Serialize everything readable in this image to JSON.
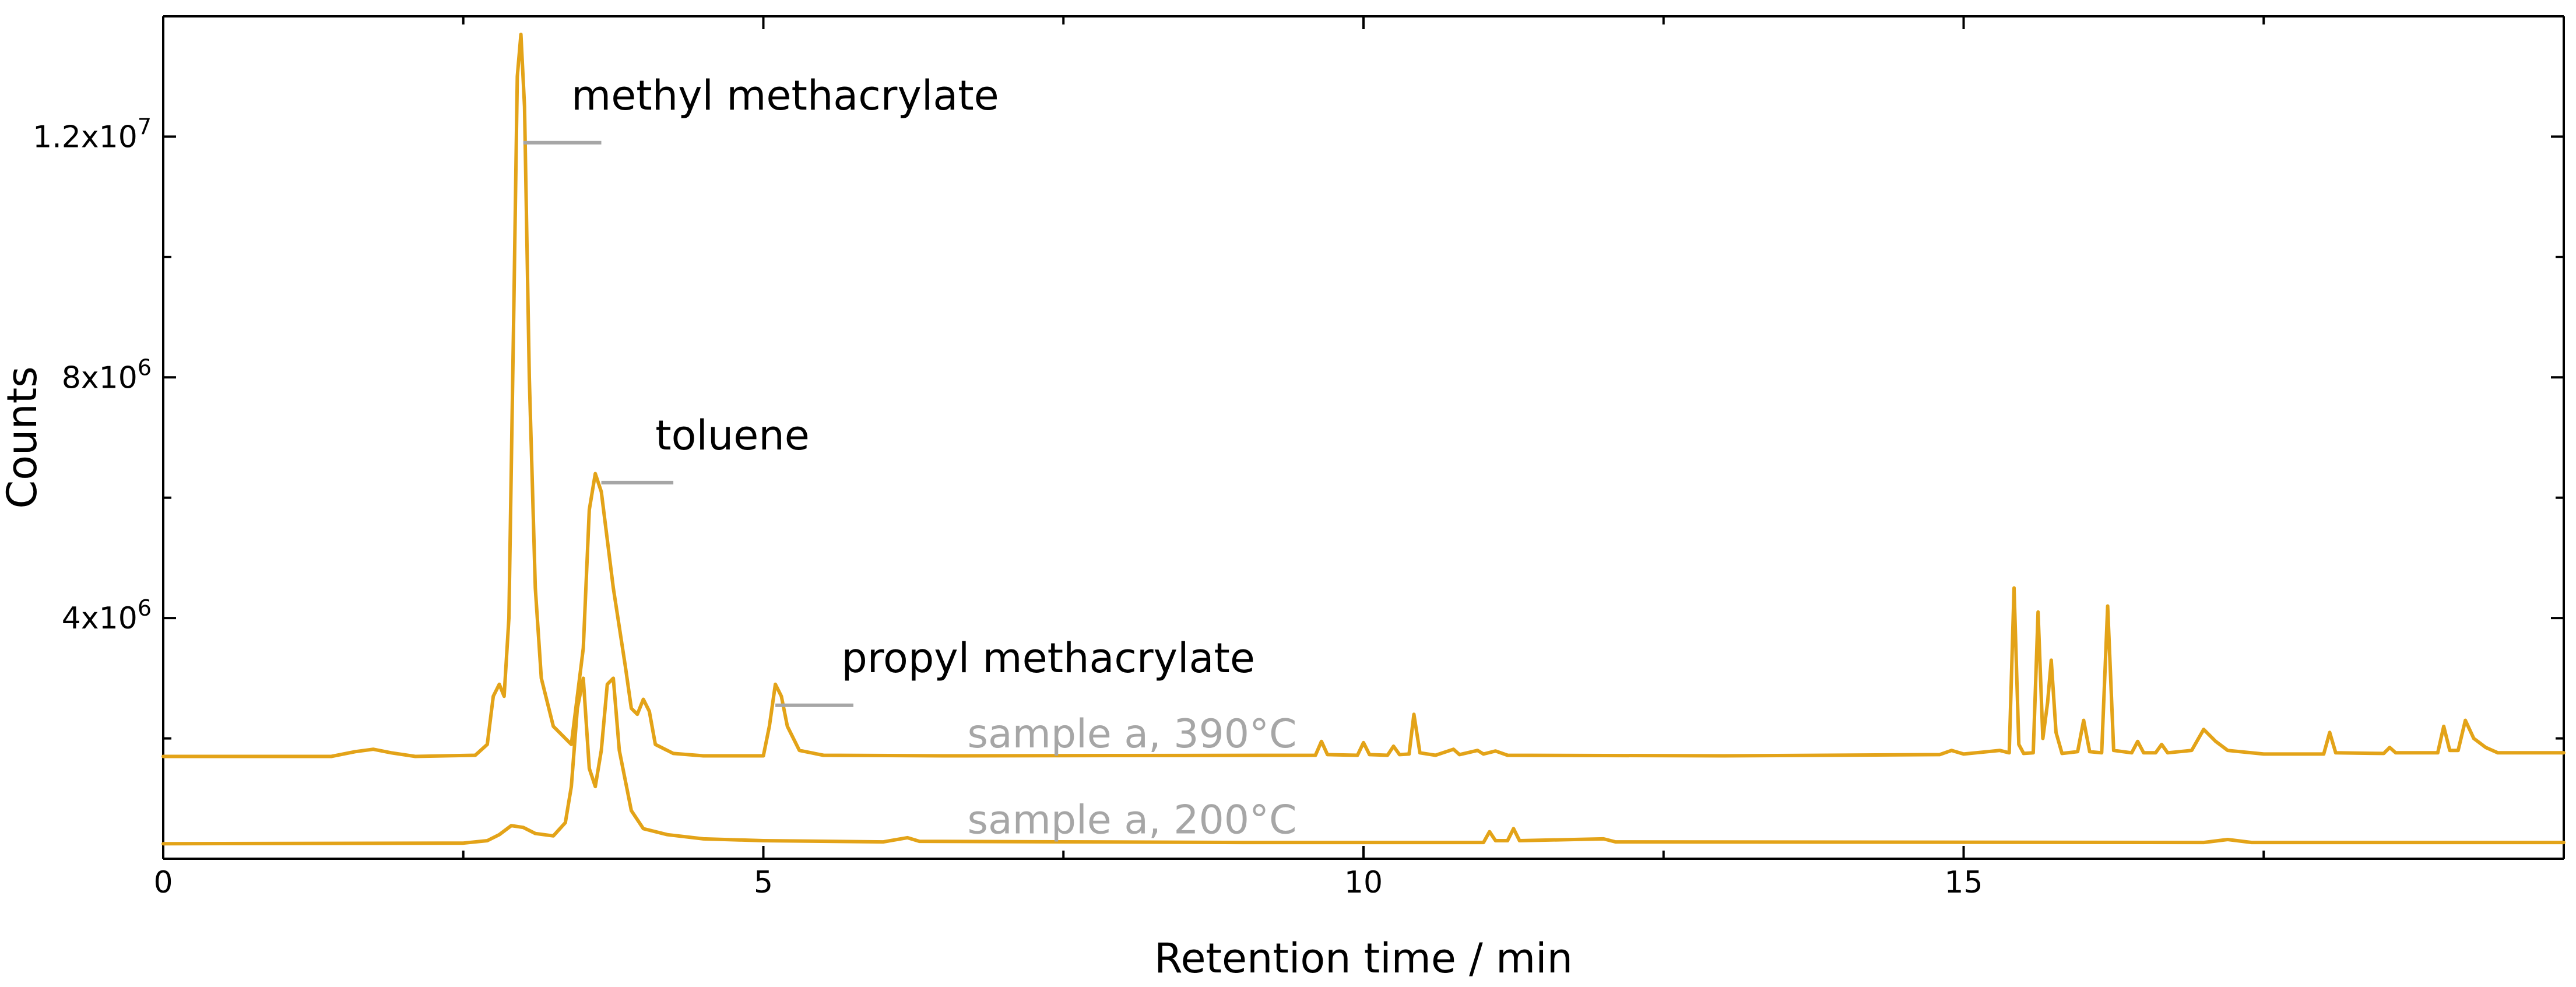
{
  "chart_data": {
    "type": "line",
    "title": "",
    "xlabel": "Retention time / min",
    "ylabel": "Counts",
    "xlim": [
      0,
      20
    ],
    "ylim": [
      0,
      14000000
    ],
    "x_ticks": [
      {
        "value": 0,
        "label": "0"
      },
      {
        "value": 5,
        "label": "5"
      },
      {
        "value": 10,
        "label": "10"
      },
      {
        "value": 15,
        "label": "15"
      }
    ],
    "x_minor_ticks": [
      2.5,
      7.5,
      12.5,
      17.5
    ],
    "y_ticks": [
      {
        "value": 4000000,
        "base": "4x10",
        "exp": "6"
      },
      {
        "value": 8000000,
        "base": "8x10",
        "exp": "6"
      },
      {
        "value": 12000000,
        "base": "1.2x10",
        "exp": "7"
      }
    ],
    "y_minor_ticks": [
      2000000,
      6000000,
      10000000
    ],
    "grid": false,
    "line_color": "#e3a318",
    "leader_color": "#a6a6a6",
    "trace_label_color": "#a6a6a6",
    "series": [
      {
        "label": "sample a, 390°C",
        "baseline": 1700000,
        "label_at": {
          "x": 6.7,
          "y": 1850000
        },
        "points": [
          [
            0.0,
            1700000
          ],
          [
            1.4,
            1700000
          ],
          [
            1.6,
            1780000
          ],
          [
            1.75,
            1820000
          ],
          [
            1.9,
            1760000
          ],
          [
            2.1,
            1700000
          ],
          [
            2.6,
            1720000
          ],
          [
            2.7,
            1900000
          ],
          [
            2.75,
            2700000
          ],
          [
            2.8,
            2900000
          ],
          [
            2.84,
            2700000
          ],
          [
            2.88,
            4000000
          ],
          [
            2.92,
            9000000
          ],
          [
            2.95,
            13000000
          ],
          [
            2.98,
            13700000
          ],
          [
            3.01,
            12500000
          ],
          [
            3.05,
            8000000
          ],
          [
            3.1,
            4500000
          ],
          [
            3.15,
            3000000
          ],
          [
            3.25,
            2200000
          ],
          [
            3.4,
            1900000
          ],
          [
            3.5,
            3500000
          ],
          [
            3.55,
            5800000
          ],
          [
            3.6,
            6400000
          ],
          [
            3.65,
            6100000
          ],
          [
            3.75,
            4500000
          ],
          [
            3.85,
            3200000
          ],
          [
            3.9,
            2500000
          ],
          [
            3.95,
            2400000
          ],
          [
            4.0,
            2650000
          ],
          [
            4.05,
            2450000
          ],
          [
            4.1,
            1900000
          ],
          [
            4.25,
            1750000
          ],
          [
            4.5,
            1710000
          ],
          [
            5.0,
            1710000
          ],
          [
            5.05,
            2200000
          ],
          [
            5.1,
            2900000
          ],
          [
            5.15,
            2700000
          ],
          [
            5.2,
            2200000
          ],
          [
            5.3,
            1800000
          ],
          [
            5.5,
            1720000
          ],
          [
            6.5,
            1710000
          ],
          [
            8.0,
            1715000
          ],
          [
            9.6,
            1720000
          ],
          [
            9.65,
            1950000
          ],
          [
            9.7,
            1730000
          ],
          [
            9.95,
            1720000
          ],
          [
            10.0,
            1930000
          ],
          [
            10.05,
            1730000
          ],
          [
            10.2,
            1720000
          ],
          [
            10.25,
            1870000
          ],
          [
            10.3,
            1730000
          ],
          [
            10.38,
            1740000
          ],
          [
            10.42,
            2400000
          ],
          [
            10.47,
            1760000
          ],
          [
            10.6,
            1720000
          ],
          [
            10.75,
            1820000
          ],
          [
            10.8,
            1730000
          ],
          [
            10.95,
            1800000
          ],
          [
            11.0,
            1740000
          ],
          [
            11.1,
            1790000
          ],
          [
            11.2,
            1720000
          ],
          [
            13.0,
            1710000
          ],
          [
            14.8,
            1730000
          ],
          [
            14.9,
            1800000
          ],
          [
            15.0,
            1740000
          ],
          [
            15.2,
            1780000
          ],
          [
            15.3,
            1800000
          ],
          [
            15.38,
            1760000
          ],
          [
            15.42,
            4500000
          ],
          [
            15.46,
            1900000
          ],
          [
            15.5,
            1750000
          ],
          [
            15.58,
            1760000
          ],
          [
            15.62,
            4100000
          ],
          [
            15.66,
            2000000
          ],
          [
            15.7,
            2600000
          ],
          [
            15.73,
            3300000
          ],
          [
            15.77,
            2100000
          ],
          [
            15.82,
            1750000
          ],
          [
            15.95,
            1780000
          ],
          [
            16.0,
            2300000
          ],
          [
            16.05,
            1780000
          ],
          [
            16.15,
            1760000
          ],
          [
            16.2,
            4200000
          ],
          [
            16.25,
            1800000
          ],
          [
            16.4,
            1760000
          ],
          [
            16.45,
            1950000
          ],
          [
            16.5,
            1760000
          ],
          [
            16.6,
            1760000
          ],
          [
            16.65,
            1900000
          ],
          [
            16.7,
            1760000
          ],
          [
            16.9,
            1800000
          ],
          [
            17.0,
            2150000
          ],
          [
            17.1,
            1950000
          ],
          [
            17.2,
            1800000
          ],
          [
            17.5,
            1740000
          ],
          [
            18.0,
            1740000
          ],
          [
            18.05,
            2100000
          ],
          [
            18.1,
            1760000
          ],
          [
            18.5,
            1750000
          ],
          [
            18.55,
            1850000
          ],
          [
            18.6,
            1760000
          ],
          [
            18.95,
            1760000
          ],
          [
            19.0,
            2200000
          ],
          [
            19.05,
            1800000
          ],
          [
            19.12,
            1800000
          ],
          [
            19.18,
            2300000
          ],
          [
            19.25,
            2000000
          ],
          [
            19.35,
            1850000
          ],
          [
            19.45,
            1760000
          ],
          [
            19.7,
            1760000
          ],
          [
            20.0,
            1760000
          ]
        ]
      },
      {
        "label": "sample a, 200°C",
        "baseline": 250000,
        "label_at": {
          "x": 6.7,
          "y": 420000
        },
        "points": [
          [
            0.0,
            250000
          ],
          [
            2.5,
            260000
          ],
          [
            2.7,
            300000
          ],
          [
            2.8,
            400000
          ],
          [
            2.9,
            550000
          ],
          [
            3.0,
            520000
          ],
          [
            3.1,
            420000
          ],
          [
            3.25,
            380000
          ],
          [
            3.35,
            600000
          ],
          [
            3.4,
            1200000
          ],
          [
            3.45,
            2500000
          ],
          [
            3.5,
            3000000
          ],
          [
            3.55,
            1500000
          ],
          [
            3.6,
            1200000
          ],
          [
            3.65,
            1800000
          ],
          [
            3.7,
            2900000
          ],
          [
            3.75,
            3000000
          ],
          [
            3.8,
            1800000
          ],
          [
            3.9,
            800000
          ],
          [
            4.0,
            500000
          ],
          [
            4.2,
            400000
          ],
          [
            4.5,
            330000
          ],
          [
            5.0,
            300000
          ],
          [
            6.0,
            280000
          ],
          [
            6.2,
            350000
          ],
          [
            6.3,
            290000
          ],
          [
            9.0,
            270000
          ],
          [
            11.0,
            270000
          ],
          [
            11.05,
            450000
          ],
          [
            11.1,
            300000
          ],
          [
            11.2,
            300000
          ],
          [
            11.25,
            500000
          ],
          [
            11.3,
            300000
          ],
          [
            12.0,
            330000
          ],
          [
            12.1,
            280000
          ],
          [
            17.0,
            270000
          ],
          [
            17.2,
            320000
          ],
          [
            17.4,
            270000
          ],
          [
            20.0,
            270000
          ]
        ]
      }
    ],
    "annotations": [
      {
        "text": "methyl methacrylate",
        "x": 3.4,
        "y": 12450000,
        "leader": [
          [
            3.0,
            11900000
          ],
          [
            3.65,
            11900000
          ]
        ]
      },
      {
        "text": "toluene",
        "x": 4.1,
        "y": 6800000,
        "leader": [
          [
            3.65,
            6250000
          ],
          [
            4.25,
            6250000
          ]
        ]
      },
      {
        "text": "propyl methacrylate",
        "x": 5.65,
        "y": 3100000,
        "leader": [
          [
            5.1,
            2550000
          ],
          [
            5.75,
            2550000
          ]
        ]
      }
    ]
  }
}
